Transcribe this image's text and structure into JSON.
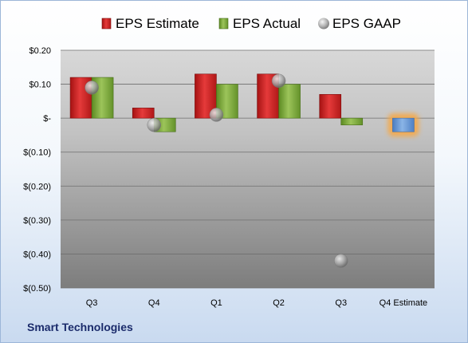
{
  "company": "Smart Technologies",
  "chart_data": {
    "type": "bar",
    "title": "",
    "xlabel": "",
    "ylabel": "",
    "categories": [
      "Q3",
      "Q4",
      "Q1",
      "Q2",
      "Q3",
      "Q4 Estimate"
    ],
    "ylim": [
      -0.5,
      0.2
    ],
    "yticks": [
      0.2,
      0.1,
      0,
      -0.1,
      -0.2,
      -0.3,
      -0.4,
      -0.5
    ],
    "ytick_labels": [
      "$0.20",
      "$0.10",
      "$-",
      "$(0.10)",
      "$(0.20)",
      "$(0.30)",
      "$(0.40)",
      "$(0.50)"
    ],
    "grid": true,
    "legend_position": "top",
    "series": [
      {
        "name": "EPS Estimate",
        "kind": "bar",
        "color": "#d42a2a",
        "values": [
          0.12,
          0.03,
          0.13,
          0.13,
          0.07,
          null
        ]
      },
      {
        "name": "EPS Actual",
        "kind": "bar",
        "color": "#7fae3c",
        "values": [
          0.12,
          -0.04,
          0.1,
          0.1,
          -0.02,
          null
        ]
      },
      {
        "name": "EPS GAAP",
        "kind": "marker",
        "color": "#a9a9a9",
        "values": [
          0.09,
          -0.02,
          0.01,
          0.11,
          -0.42,
          null
        ]
      }
    ],
    "estimate_bar": {
      "category": "Q4 Estimate",
      "value": -0.04,
      "color": "#6f9bd6",
      "glow": "#f5a94a"
    }
  }
}
